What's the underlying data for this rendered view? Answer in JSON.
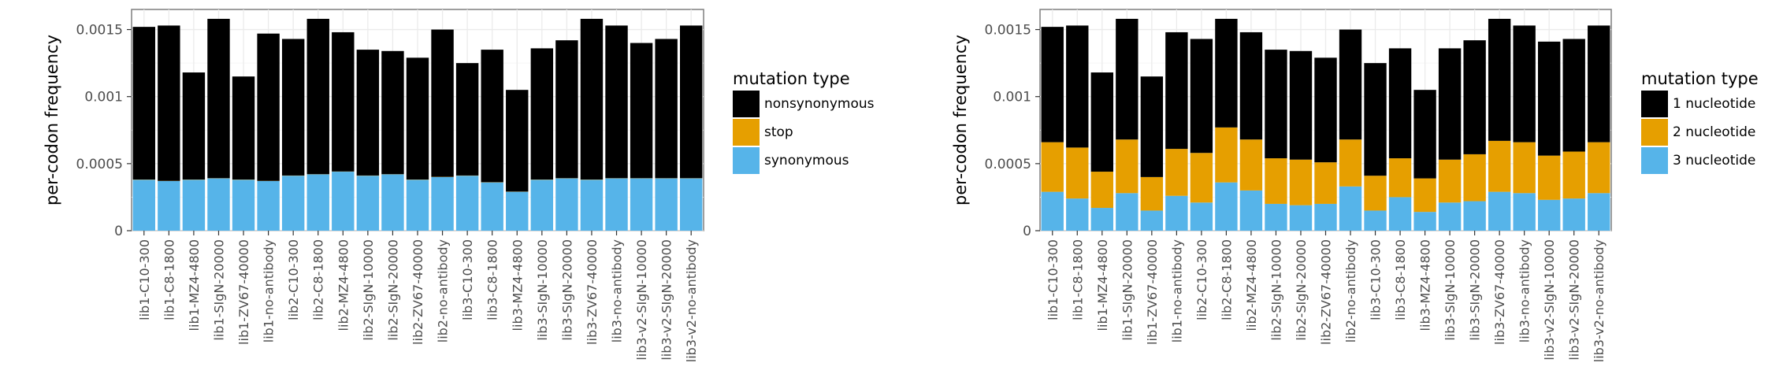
{
  "chart_data": [
    {
      "type": "bar",
      "stacked": true,
      "ylabel": "per-codon frequency",
      "xlabel": "",
      "ylim": [
        0,
        0.00165
      ],
      "yticks": [
        0,
        0.0005,
        0.001,
        0.0015
      ],
      "ytick_labels": [
        "0",
        "0.0005",
        "0.001",
        "0.0015"
      ],
      "grid": true,
      "legend_position": "right",
      "legend_title": "mutation type",
      "categories": [
        "lib1-C10-300",
        "lib1-C8-1800",
        "lib1-MZ4-4800",
        "lib1-SIgN-20000",
        "lib1-ZV67-40000",
        "lib1-no-antibody",
        "lib2-C10-300",
        "lib2-C8-1800",
        "lib2-MZ4-4800",
        "lib2-SIgN-10000",
        "lib2-SIgN-20000",
        "lib2-ZV67-40000",
        "lib2-no-antibody",
        "lib3-C10-300",
        "lib3-C8-1800",
        "lib3-MZ4-4800",
        "lib3-SIgN-10000",
        "lib3-SIgN-20000",
        "lib3-ZV67-40000",
        "lib3-no-antibody",
        "lib3-v2-SIgN-10000",
        "lib3-v2-SIgN-20000",
        "lib3-v2-no-antibody"
      ],
      "series": [
        {
          "name": "synonymous",
          "color": "#56B4E9",
          "values": [
            0.00038,
            0.00037,
            0.00038,
            0.00039,
            0.00038,
            0.00037,
            0.00041,
            0.00042,
            0.00044,
            0.00041,
            0.00042,
            0.00038,
            0.0004,
            0.00041,
            0.00036,
            0.00029,
            0.00038,
            0.00039,
            0.00038,
            0.00039,
            0.00039,
            0.00039,
            0.00039
          ]
        },
        {
          "name": "stop",
          "color": "#E69F00",
          "values": [
            1.5e-06,
            1.5e-06,
            1.5e-06,
            1.5e-06,
            1.5e-06,
            1.5e-06,
            1.5e-06,
            1.5e-06,
            1.5e-06,
            1.5e-06,
            1.5e-06,
            1.5e-06,
            1.5e-06,
            1.5e-06,
            1.5e-06,
            1.5e-06,
            1.5e-06,
            1.5e-06,
            1.5e-06,
            1.5e-06,
            1.5e-06,
            1.5e-06,
            1.5e-06
          ]
        },
        {
          "name": "nonsynonymous",
          "color": "#000000",
          "values": [
            0.0011385,
            0.0011585,
            0.0007985,
            0.0011885,
            0.0007685,
            0.0010985,
            0.0010185,
            0.0011585,
            0.0010385,
            0.0009385,
            0.0009185,
            0.0009085,
            0.0010985,
            0.0008385,
            0.0009885,
            0.0007585,
            0.0009785,
            0.0010285,
            0.0011985,
            0.0011385,
            0.0010085,
            0.0010385,
            0.0011385
          ]
        }
      ],
      "legend_order": [
        "nonsynonymous",
        "stop",
        "synonymous"
      ]
    },
    {
      "type": "bar",
      "stacked": true,
      "ylabel": "per-codon frequency",
      "xlabel": "",
      "ylim": [
        0,
        0.00165
      ],
      "yticks": [
        0,
        0.0005,
        0.001,
        0.0015
      ],
      "ytick_labels": [
        "0",
        "0.0005",
        "0.001",
        "0.0015"
      ],
      "grid": true,
      "legend_position": "right",
      "legend_title": "mutation type",
      "categories": [
        "lib1-C10-300",
        "lib1-C8-1800",
        "lib1-MZ4-4800",
        "lib1-SIgN-20000",
        "lib1-ZV67-40000",
        "lib1-no-antibody",
        "lib2-C10-300",
        "lib2-C8-1800",
        "lib2-MZ4-4800",
        "lib2-SIgN-10000",
        "lib2-SIgN-20000",
        "lib2-ZV67-40000",
        "lib2-no-antibody",
        "lib3-C10-300",
        "lib3-C8-1800",
        "lib3-MZ4-4800",
        "lib3-SIgN-10000",
        "lib3-SIgN-20000",
        "lib3-ZV67-40000",
        "lib3-no-antibody",
        "lib3-v2-SIgN-10000",
        "lib3-v2-SIgN-20000",
        "lib3-v2-no-antibody"
      ],
      "series": [
        {
          "name": "3 nucleotide",
          "color": "#56B4E9",
          "values": [
            0.00029,
            0.00024,
            0.00017,
            0.00028,
            0.00015,
            0.00026,
            0.00021,
            0.00036,
            0.0003,
            0.0002,
            0.00019,
            0.0002,
            0.00033,
            0.00015,
            0.00025,
            0.00014,
            0.00021,
            0.00022,
            0.00029,
            0.00028,
            0.00023,
            0.00024,
            0.00028
          ]
        },
        {
          "name": "2 nucleotide",
          "color": "#E69F00",
          "values": [
            0.00037,
            0.00038,
            0.00027,
            0.0004,
            0.00025,
            0.00035,
            0.00037,
            0.00041,
            0.00038,
            0.00034,
            0.00034,
            0.00031,
            0.00035,
            0.00026,
            0.00029,
            0.00025,
            0.00032,
            0.00035,
            0.00038,
            0.00038,
            0.00033,
            0.00035,
            0.00038
          ]
        },
        {
          "name": "1 nucleotide",
          "color": "#000000",
          "values": [
            0.00086,
            0.00091,
            0.00074,
            0.0009,
            0.00075,
            0.00087,
            0.00085,
            0.00081,
            0.0008,
            0.00081,
            0.00081,
            0.00078,
            0.00082,
            0.00084,
            0.00082,
            0.00066,
            0.00083,
            0.00085,
            0.00091,
            0.00087,
            0.00085,
            0.00084,
            0.00087
          ]
        }
      ],
      "legend_order": [
        "1 nucleotide",
        "2 nucleotide",
        "3 nucleotide"
      ]
    }
  ]
}
